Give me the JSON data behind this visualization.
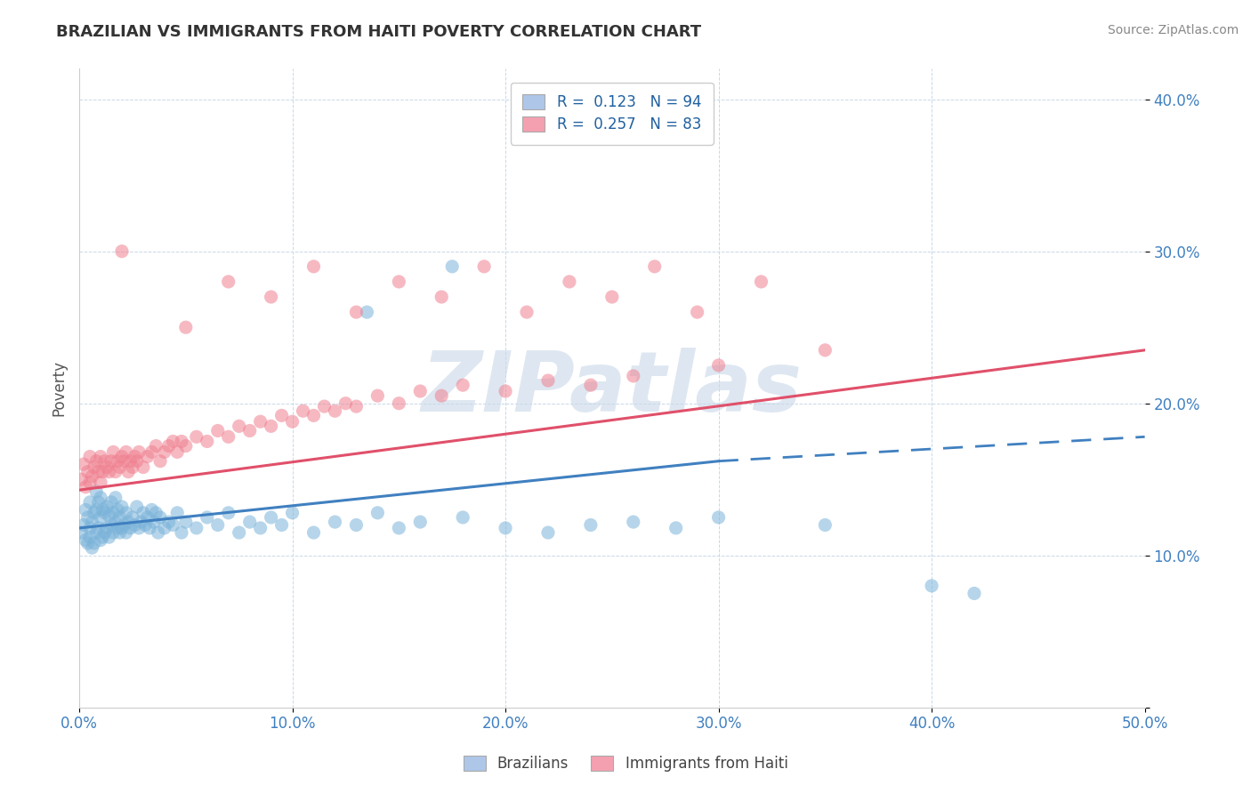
{
  "title": "BRAZILIAN VS IMMIGRANTS FROM HAITI POVERTY CORRELATION CHART",
  "source_text": "Source: ZipAtlas.com",
  "ylabel": "Poverty",
  "xlim": [
    0.0,
    0.5
  ],
  "ylim": [
    0.0,
    0.42
  ],
  "yticks": [
    0.0,
    0.1,
    0.2,
    0.3,
    0.4
  ],
  "xticks": [
    0.0,
    0.1,
    0.2,
    0.3,
    0.4,
    0.5
  ],
  "legend_bottom": [
    "Brazilians",
    "Immigrants from Haiti"
  ],
  "brazil_color": "#7ab3d9",
  "haiti_color": "#f08090",
  "brazil_line_color": "#4080c0",
  "haiti_line_color": "#e0506a",
  "background_color": "#ffffff",
  "grid_color": "#c8d8e8",
  "brazil_scatter_x": [
    0.001,
    0.002,
    0.003,
    0.003,
    0.004,
    0.004,
    0.005,
    0.005,
    0.005,
    0.006,
    0.006,
    0.007,
    0.007,
    0.008,
    0.008,
    0.008,
    0.009,
    0.009,
    0.01,
    0.01,
    0.01,
    0.011,
    0.011,
    0.012,
    0.012,
    0.013,
    0.013,
    0.014,
    0.014,
    0.015,
    0.015,
    0.016,
    0.016,
    0.017,
    0.017,
    0.018,
    0.018,
    0.019,
    0.019,
    0.02,
    0.02,
    0.021,
    0.022,
    0.022,
    0.023,
    0.024,
    0.025,
    0.026,
    0.027,
    0.028,
    0.029,
    0.03,
    0.031,
    0.032,
    0.033,
    0.034,
    0.035,
    0.036,
    0.037,
    0.038,
    0.04,
    0.042,
    0.044,
    0.046,
    0.048,
    0.05,
    0.055,
    0.06,
    0.065,
    0.07,
    0.075,
    0.08,
    0.085,
    0.09,
    0.095,
    0.1,
    0.11,
    0.12,
    0.13,
    0.14,
    0.15,
    0.16,
    0.18,
    0.2,
    0.22,
    0.24,
    0.26,
    0.28,
    0.3,
    0.35,
    0.4,
    0.42,
    0.135,
    0.175
  ],
  "brazil_scatter_y": [
    0.115,
    0.12,
    0.11,
    0.13,
    0.108,
    0.125,
    0.112,
    0.118,
    0.135,
    0.105,
    0.122,
    0.108,
    0.128,
    0.115,
    0.13,
    0.142,
    0.118,
    0.135,
    0.11,
    0.125,
    0.138,
    0.112,
    0.13,
    0.115,
    0.128,
    0.118,
    0.132,
    0.112,
    0.126,
    0.12,
    0.135,
    0.115,
    0.128,
    0.122,
    0.138,
    0.118,
    0.13,
    0.115,
    0.125,
    0.118,
    0.132,
    0.12,
    0.115,
    0.128,
    0.122,
    0.118,
    0.125,
    0.12,
    0.132,
    0.118,
    0.122,
    0.128,
    0.12,
    0.125,
    0.118,
    0.13,
    0.122,
    0.128,
    0.115,
    0.125,
    0.118,
    0.122,
    0.12,
    0.128,
    0.115,
    0.122,
    0.118,
    0.125,
    0.12,
    0.128,
    0.115,
    0.122,
    0.118,
    0.125,
    0.12,
    0.128,
    0.115,
    0.122,
    0.12,
    0.128,
    0.118,
    0.122,
    0.125,
    0.118,
    0.115,
    0.12,
    0.122,
    0.118,
    0.125,
    0.12,
    0.08,
    0.075,
    0.26,
    0.29
  ],
  "haiti_scatter_x": [
    0.001,
    0.002,
    0.003,
    0.004,
    0.005,
    0.005,
    0.006,
    0.007,
    0.008,
    0.009,
    0.01,
    0.01,
    0.011,
    0.012,
    0.013,
    0.014,
    0.015,
    0.016,
    0.017,
    0.018,
    0.019,
    0.02,
    0.021,
    0.022,
    0.023,
    0.024,
    0.025,
    0.026,
    0.027,
    0.028,
    0.03,
    0.032,
    0.034,
    0.036,
    0.038,
    0.04,
    0.042,
    0.044,
    0.046,
    0.048,
    0.05,
    0.055,
    0.06,
    0.065,
    0.07,
    0.075,
    0.08,
    0.085,
    0.09,
    0.095,
    0.1,
    0.105,
    0.11,
    0.115,
    0.12,
    0.125,
    0.13,
    0.14,
    0.15,
    0.16,
    0.17,
    0.18,
    0.2,
    0.22,
    0.24,
    0.26,
    0.3,
    0.35,
    0.02,
    0.05,
    0.07,
    0.09,
    0.11,
    0.13,
    0.15,
    0.17,
    0.19,
    0.21,
    0.23,
    0.25,
    0.27,
    0.29,
    0.32
  ],
  "haiti_scatter_y": [
    0.15,
    0.16,
    0.145,
    0.155,
    0.148,
    0.165,
    0.152,
    0.158,
    0.162,
    0.155,
    0.148,
    0.165,
    0.155,
    0.162,
    0.158,
    0.155,
    0.162,
    0.168,
    0.155,
    0.162,
    0.158,
    0.165,
    0.162,
    0.168,
    0.155,
    0.162,
    0.158,
    0.165,
    0.162,
    0.168,
    0.158,
    0.165,
    0.168,
    0.172,
    0.162,
    0.168,
    0.172,
    0.175,
    0.168,
    0.175,
    0.172,
    0.178,
    0.175,
    0.182,
    0.178,
    0.185,
    0.182,
    0.188,
    0.185,
    0.192,
    0.188,
    0.195,
    0.192,
    0.198,
    0.195,
    0.2,
    0.198,
    0.205,
    0.2,
    0.208,
    0.205,
    0.212,
    0.208,
    0.215,
    0.212,
    0.218,
    0.225,
    0.235,
    0.3,
    0.25,
    0.28,
    0.27,
    0.29,
    0.26,
    0.28,
    0.27,
    0.29,
    0.26,
    0.28,
    0.27,
    0.29,
    0.26,
    0.28
  ]
}
